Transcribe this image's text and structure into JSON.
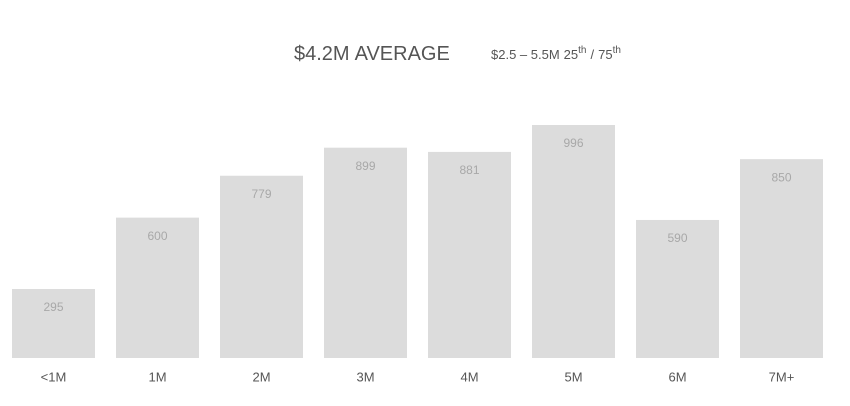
{
  "header": {
    "average": "$4.2M",
    "average_label": "AVERAGE",
    "range": "$2.5 – 5.5M",
    "percentile_low": "25",
    "percentile_suffix": "th",
    "separator": "/",
    "percentile_high": "75"
  },
  "chart_data": {
    "type": "bar",
    "categories": [
      "<1M",
      "1M",
      "2M",
      "3M",
      "4M",
      "5M",
      "6M",
      "7M+"
    ],
    "values": [
      295,
      600,
      779,
      899,
      881,
      996,
      590,
      850
    ],
    "color": "#dcdcdc"
  }
}
